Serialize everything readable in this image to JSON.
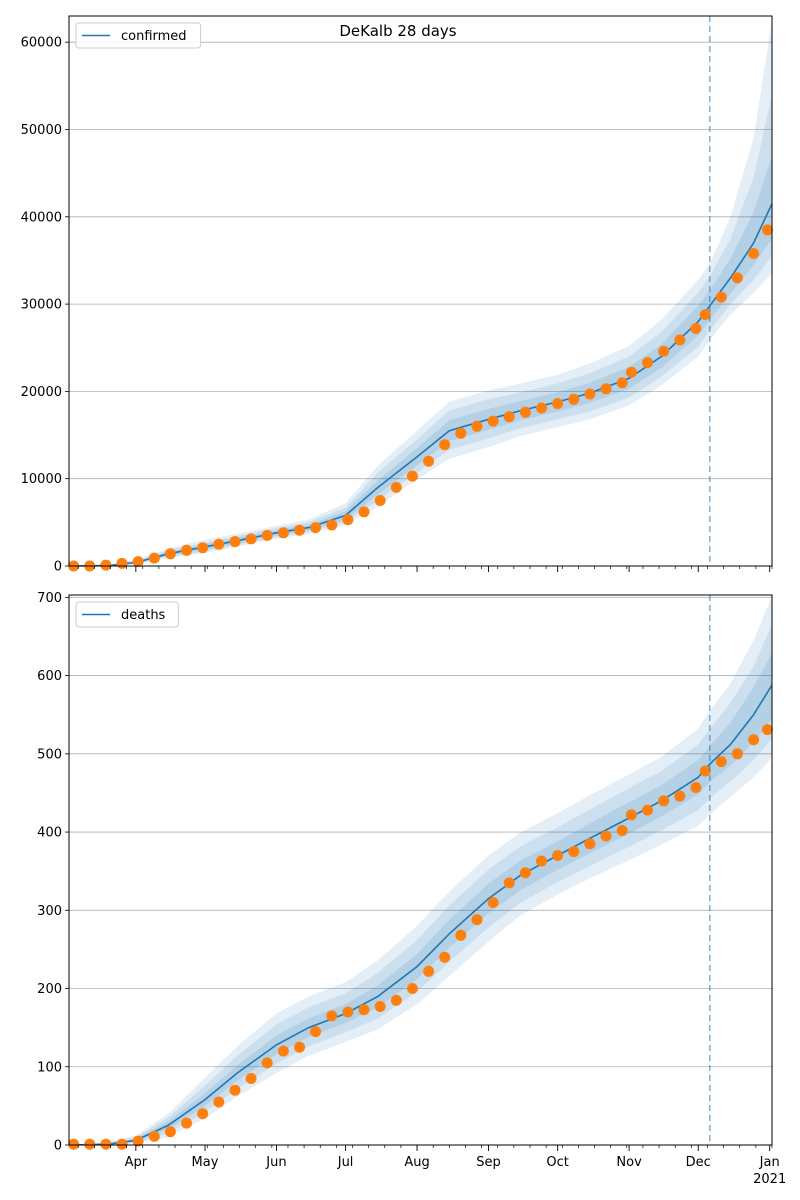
{
  "figure": {
    "title": "DeKalb 28 days"
  },
  "colors": {
    "model": "#1f77b4",
    "observed": "#ff7f0e",
    "band": "#1f77b4",
    "grid": "#b0b0b0"
  },
  "x_axis": {
    "months": [
      "Apr",
      "May",
      "Jun",
      "Jul",
      "Aug",
      "Sep",
      "Oct",
      "Nov",
      "Dec",
      "Jan"
    ],
    "year_label": "2021"
  },
  "chart_data": [
    {
      "type": "line",
      "legend": "confirmed",
      "legend_placement": "top-left",
      "grid": "horizontal",
      "xlim": [
        "2020-03-03",
        "2021-01-02"
      ],
      "ylim": [
        0,
        63000
      ],
      "yticks": [
        0,
        10000,
        20000,
        30000,
        40000,
        50000,
        60000
      ],
      "forecast_start": "2020-12-06",
      "model": {
        "x": [
          "2020-03-03",
          "2020-03-20",
          "2020-04-01",
          "2020-04-15",
          "2020-05-01",
          "2020-05-15",
          "2020-06-01",
          "2020-06-15",
          "2020-07-01",
          "2020-07-15",
          "2020-08-01",
          "2020-08-15",
          "2020-09-01",
          "2020-09-15",
          "2020-10-01",
          "2020-10-15",
          "2020-11-01",
          "2020-11-15",
          "2020-12-01",
          "2020-12-06",
          "2020-12-15",
          "2020-12-25",
          "2021-01-02"
        ],
        "y": [
          0,
          50,
          400,
          1400,
          2200,
          2900,
          3800,
          4400,
          5800,
          9000,
          12500,
          15500,
          16800,
          17800,
          18800,
          19800,
          21500,
          24000,
          28000,
          29800,
          33000,
          37000,
          41500
        ],
        "band_inner": {
          "lower": [
            0,
            30,
            300,
            1200,
            1900,
            2600,
            3500,
            4100,
            5300,
            8200,
            11500,
            14300,
            15600,
            16700,
            17700,
            18700,
            20300,
            22700,
            26400,
            28200,
            31200,
            34500,
            37500
          ],
          "upper": [
            0,
            70,
            500,
            1600,
            2500,
            3200,
            4100,
            4700,
            6300,
            9800,
            13500,
            16700,
            18000,
            18900,
            19900,
            21000,
            22800,
            25400,
            29800,
            31600,
            35200,
            40500,
            47000
          ]
        },
        "band_mid": {
          "lower": [
            0,
            20,
            250,
            1050,
            1700,
            2400,
            3300,
            3900,
            5000,
            7500,
            10700,
            13300,
            14600,
            15800,
            16800,
            17700,
            19300,
            21700,
            25100,
            27000,
            30000,
            32800,
            35500
          ],
          "upper": [
            0,
            80,
            600,
            1800,
            2700,
            3450,
            4350,
            5000,
            6700,
            10700,
            14500,
            17800,
            19100,
            19900,
            20900,
            22100,
            24000,
            26800,
            31300,
            33200,
            37500,
            44500,
            54000
          ]
        },
        "band_outer": {
          "lower": [
            0,
            10,
            200,
            900,
            1500,
            2200,
            3100,
            3700,
            4700,
            6800,
            9900,
            12300,
            13600,
            14900,
            15900,
            16800,
            18400,
            20700,
            24000,
            25900,
            28800,
            31300,
            33500
          ],
          "upper": [
            0,
            100,
            700,
            2000,
            3000,
            3700,
            4600,
            5300,
            7200,
            11500,
            15500,
            18800,
            20100,
            20900,
            21900,
            23200,
            25200,
            28200,
            32800,
            34600,
            40000,
            49000,
            62500
          ]
        }
      },
      "observed": {
        "x": [
          "2020-03-05",
          "2020-03-12",
          "2020-03-19",
          "2020-03-26",
          "2020-04-02",
          "2020-04-09",
          "2020-04-16",
          "2020-04-23",
          "2020-04-30",
          "2020-05-07",
          "2020-05-14",
          "2020-05-21",
          "2020-05-28",
          "2020-06-04",
          "2020-06-11",
          "2020-06-18",
          "2020-06-25",
          "2020-07-02",
          "2020-07-09",
          "2020-07-16",
          "2020-07-23",
          "2020-07-30",
          "2020-08-06",
          "2020-08-13",
          "2020-08-20",
          "2020-08-27",
          "2020-09-03",
          "2020-09-10",
          "2020-09-17",
          "2020-09-24",
          "2020-10-01",
          "2020-10-08",
          "2020-10-15",
          "2020-10-22",
          "2020-10-29",
          "2020-11-02",
          "2020-11-09",
          "2020-11-16",
          "2020-11-23",
          "2020-11-30",
          "2020-12-04",
          "2020-12-11",
          "2020-12-18",
          "2020-12-25",
          "2020-12-31"
        ],
        "y": [
          0,
          0,
          100,
          300,
          500,
          900,
          1400,
          1800,
          2100,
          2500,
          2800,
          3100,
          3500,
          3800,
          4100,
          4400,
          4700,
          5300,
          6200,
          7500,
          9000,
          10300,
          12000,
          13900,
          15200,
          16000,
          16600,
          17100,
          17600,
          18100,
          18600,
          19100,
          19700,
          20300,
          21000,
          22200,
          23300,
          24600,
          25900,
          27200,
          28800,
          30800,
          33000,
          35800,
          38500
        ]
      }
    },
    {
      "type": "line",
      "legend": "deaths",
      "legend_placement": "top-left",
      "grid": "horizontal",
      "xlim": [
        "2020-03-03",
        "2021-01-02"
      ],
      "ylim": [
        0,
        703
      ],
      "yticks": [
        0,
        100,
        200,
        300,
        400,
        500,
        600,
        700
      ],
      "forecast_start": "2020-12-06",
      "model": {
        "x": [
          "2020-03-03",
          "2020-03-20",
          "2020-04-01",
          "2020-04-15",
          "2020-05-01",
          "2020-05-15",
          "2020-06-01",
          "2020-06-15",
          "2020-07-01",
          "2020-07-15",
          "2020-08-01",
          "2020-08-15",
          "2020-09-01",
          "2020-09-15",
          "2020-10-01",
          "2020-10-15",
          "2020-11-01",
          "2020-11-15",
          "2020-12-01",
          "2020-12-06",
          "2020-12-15",
          "2020-12-25",
          "2021-01-02"
        ],
        "y": [
          0,
          1,
          6,
          25,
          58,
          92,
          128,
          150,
          168,
          190,
          228,
          270,
          315,
          345,
          370,
          392,
          418,
          440,
          470,
          487,
          512,
          550,
          588
        ],
        "band_inner": {
          "lower": [
            0,
            0,
            4,
            20,
            50,
            82,
            116,
            138,
            156,
            176,
            212,
            252,
            296,
            326,
            352,
            373,
            398,
            420,
            448,
            464,
            485,
            515,
            545
          ],
          "upper": [
            0,
            2,
            8,
            30,
            66,
            102,
            140,
            162,
            180,
            204,
            244,
            288,
            334,
            364,
            388,
            411,
            438,
            460,
            492,
            510,
            540,
            585,
            630
          ]
        },
        "band_mid": {
          "lower": [
            0,
            0,
            3,
            15,
            42,
            72,
            104,
            126,
            144,
            162,
            196,
            234,
            278,
            310,
            336,
            357,
            381,
            402,
            428,
            443,
            465,
            492,
            520
          ],
          "upper": [
            0,
            3,
            10,
            35,
            76,
            114,
            154,
            176,
            194,
            220,
            262,
            306,
            352,
            382,
            406,
            429,
            456,
            478,
            512,
            532,
            565,
            612,
            665
          ]
        },
        "band_outer": {
          "lower": [
            0,
            0,
            2,
            10,
            34,
            62,
            92,
            114,
            132,
            148,
            180,
            216,
            260,
            294,
            320,
            341,
            364,
            384,
            408,
            422,
            445,
            470,
            495
          ],
          "upper": [
            0,
            4,
            12,
            40,
            86,
            126,
            168,
            190,
            208,
            236,
            280,
            324,
            370,
            400,
            424,
            447,
            474,
            496,
            532,
            555,
            590,
            645,
            702
          ]
        }
      },
      "observed": {
        "x": [
          "2020-03-05",
          "2020-03-12",
          "2020-03-19",
          "2020-03-26",
          "2020-04-02",
          "2020-04-09",
          "2020-04-16",
          "2020-04-23",
          "2020-04-30",
          "2020-05-07",
          "2020-05-14",
          "2020-05-21",
          "2020-05-28",
          "2020-06-04",
          "2020-06-11",
          "2020-06-18",
          "2020-06-25",
          "2020-07-02",
          "2020-07-09",
          "2020-07-16",
          "2020-07-23",
          "2020-07-30",
          "2020-08-06",
          "2020-08-13",
          "2020-08-20",
          "2020-08-27",
          "2020-09-03",
          "2020-09-10",
          "2020-09-17",
          "2020-09-24",
          "2020-10-01",
          "2020-10-08",
          "2020-10-15",
          "2020-10-22",
          "2020-10-29",
          "2020-11-02",
          "2020-11-09",
          "2020-11-16",
          "2020-11-23",
          "2020-11-30",
          "2020-12-04",
          "2020-12-11",
          "2020-12-18",
          "2020-12-25",
          "2020-12-31"
        ],
        "y": [
          1,
          1,
          1,
          1,
          5,
          11,
          17,
          28,
          40,
          55,
          70,
          85,
          105,
          120,
          125,
          145,
          165,
          170,
          173,
          177,
          185,
          200,
          222,
          240,
          268,
          288,
          310,
          335,
          348,
          363,
          370,
          375,
          385,
          395,
          402,
          422,
          428,
          440,
          446,
          457,
          478,
          490,
          500,
          518,
          531
        ]
      }
    }
  ]
}
